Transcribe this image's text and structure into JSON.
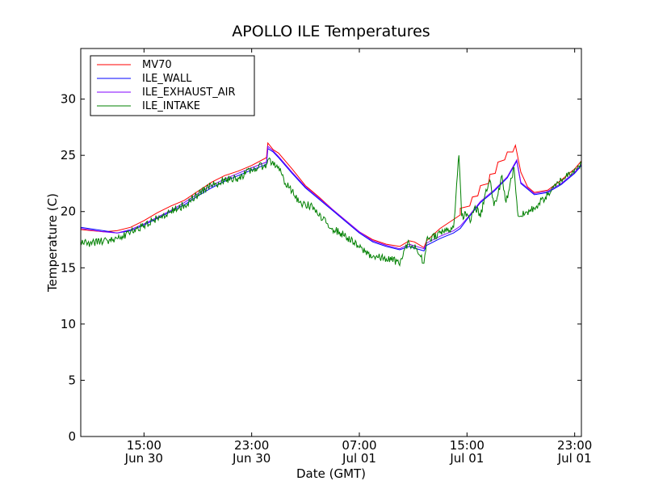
{
  "chart_data": {
    "type": "line",
    "title": "APOLLO ILE Temperatures",
    "xlabel": "Date (GMT)",
    "ylabel": "Temperature (C)",
    "x_unit": "hours since Jun 30 00:00 GMT",
    "xlim": [
      10.3,
      47.5
    ],
    "ylim": [
      0,
      34.5
    ],
    "grid": false,
    "legend_position": "top-left",
    "y_ticks": [
      0,
      5,
      10,
      15,
      20,
      25,
      30
    ],
    "x_ticks": [
      {
        "x": 15,
        "time": "15:00",
        "date": "Jun 30"
      },
      {
        "x": 23,
        "time": "23:00",
        "date": "Jun 30"
      },
      {
        "x": 31,
        "time": "07:00",
        "date": "Jul 01"
      },
      {
        "x": 39,
        "time": "15:00",
        "date": "Jul 01"
      },
      {
        "x": 47,
        "time": "23:00",
        "date": "Jul 01"
      }
    ],
    "series": [
      {
        "name": "MV70",
        "color": "#ff0000",
        "noise": 0,
        "points": [
          [
            10.3,
            18.4
          ],
          [
            12,
            18.2
          ],
          [
            13,
            18.3
          ],
          [
            14,
            18.6
          ],
          [
            15,
            19.2
          ],
          [
            16,
            19.9
          ],
          [
            17,
            20.5
          ],
          [
            18,
            21.0
          ],
          [
            19,
            21.8
          ],
          [
            20,
            22.6
          ],
          [
            21,
            23.2
          ],
          [
            22,
            23.6
          ],
          [
            23,
            24.1
          ],
          [
            24.1,
            24.8
          ],
          [
            24.2,
            26.1
          ],
          [
            24.6,
            25.5
          ],
          [
            25,
            25.2
          ],
          [
            26,
            23.8
          ],
          [
            27,
            22.3
          ],
          [
            28,
            21.3
          ],
          [
            29,
            20.2
          ],
          [
            30,
            19.2
          ],
          [
            31,
            18.2
          ],
          [
            32,
            17.5
          ],
          [
            33,
            17.1
          ],
          [
            34,
            16.9
          ],
          [
            34.7,
            17.4
          ],
          [
            35.1,
            17.3
          ],
          [
            35.8,
            16.8
          ],
          [
            36,
            17.4
          ],
          [
            37,
            18.5
          ],
          [
            38,
            19.3
          ],
          [
            38.5,
            19.7
          ],
          [
            38.5,
            20.3
          ],
          [
            39.2,
            20.5
          ],
          [
            39.4,
            21.3
          ],
          [
            39.8,
            21.4
          ],
          [
            40,
            22.3
          ],
          [
            40.6,
            22.5
          ],
          [
            40.7,
            23.3
          ],
          [
            41.1,
            23.4
          ],
          [
            41.3,
            24.4
          ],
          [
            41.8,
            24.6
          ],
          [
            42,
            25.3
          ],
          [
            42.4,
            25.3
          ],
          [
            42.6,
            25.9
          ],
          [
            43,
            23.5
          ],
          [
            43.5,
            22.2
          ],
          [
            44,
            21.7
          ],
          [
            45,
            21.9
          ],
          [
            46,
            22.8
          ],
          [
            47,
            23.8
          ],
          [
            47.5,
            24.5
          ]
        ]
      },
      {
        "name": "ILE_WALL",
        "color": "#0000ff",
        "noise": 0,
        "points": [
          [
            10.3,
            18.6
          ],
          [
            12,
            18.3
          ],
          [
            13,
            18.1
          ],
          [
            14,
            18.3
          ],
          [
            15,
            18.8
          ],
          [
            16,
            19.4
          ],
          [
            17,
            20.0
          ],
          [
            18,
            20.6
          ],
          [
            19,
            21.4
          ],
          [
            20,
            22.1
          ],
          [
            21,
            22.7
          ],
          [
            22,
            23.2
          ],
          [
            23,
            23.7
          ],
          [
            24.1,
            24.2
          ],
          [
            24.2,
            25.6
          ],
          [
            24.6,
            25.3
          ],
          [
            25,
            24.8
          ],
          [
            26,
            23.4
          ],
          [
            27,
            22.1
          ],
          [
            28,
            21.1
          ],
          [
            29,
            20.1
          ],
          [
            30,
            19.1
          ],
          [
            31,
            18.1
          ],
          [
            32,
            17.3
          ],
          [
            33,
            16.9
          ],
          [
            34,
            16.6
          ],
          [
            34.7,
            16.9
          ],
          [
            35.8,
            16.5
          ],
          [
            36,
            17.0
          ],
          [
            37,
            17.6
          ],
          [
            38,
            18.1
          ],
          [
            38.5,
            18.5
          ],
          [
            39,
            19.3
          ],
          [
            40,
            20.8
          ],
          [
            41,
            21.8
          ],
          [
            42,
            23.0
          ],
          [
            42.7,
            24.5
          ],
          [
            43,
            22.5
          ],
          [
            44,
            21.5
          ],
          [
            45,
            21.7
          ],
          [
            46,
            22.4
          ],
          [
            47,
            23.4
          ],
          [
            47.5,
            24.1
          ]
        ]
      },
      {
        "name": "ILE_EXHAUST_AIR",
        "color": "#8000ff",
        "noise": 0,
        "points": [
          [
            10.3,
            18.5
          ],
          [
            12,
            18.2
          ],
          [
            13,
            18.1
          ],
          [
            14,
            18.4
          ],
          [
            15,
            18.9
          ],
          [
            16,
            19.5
          ],
          [
            17,
            20.1
          ],
          [
            18,
            20.8
          ],
          [
            19,
            21.6
          ],
          [
            20,
            22.3
          ],
          [
            21,
            22.9
          ],
          [
            22,
            23.4
          ],
          [
            23,
            23.9
          ],
          [
            24.1,
            24.4
          ],
          [
            24.2,
            25.8
          ],
          [
            24.6,
            25.4
          ],
          [
            25,
            24.9
          ],
          [
            26,
            23.5
          ],
          [
            27,
            22.2
          ],
          [
            28,
            21.2
          ],
          [
            29,
            20.2
          ],
          [
            30,
            19.2
          ],
          [
            31,
            18.2
          ],
          [
            32,
            17.4
          ],
          [
            33,
            17.0
          ],
          [
            34,
            16.7
          ],
          [
            34.7,
            17.1
          ],
          [
            35.8,
            16.7
          ],
          [
            36,
            17.2
          ],
          [
            37,
            17.8
          ],
          [
            38,
            18.3
          ],
          [
            38.5,
            18.7
          ],
          [
            39,
            19.4
          ],
          [
            40,
            20.9
          ],
          [
            41,
            21.9
          ],
          [
            42,
            23.1
          ],
          [
            42.7,
            24.6
          ],
          [
            43,
            22.6
          ],
          [
            44,
            21.6
          ],
          [
            45,
            21.8
          ],
          [
            46,
            22.5
          ],
          [
            47,
            23.5
          ],
          [
            47.5,
            24.2
          ]
        ]
      },
      {
        "name": "ILE_INTAKE",
        "color": "#008000",
        "noise": 0.35,
        "points": [
          [
            10.3,
            17.3
          ],
          [
            11,
            17.2
          ],
          [
            12,
            17.4
          ],
          [
            13,
            17.6
          ],
          [
            14,
            18.2
          ],
          [
            15,
            18.7
          ],
          [
            16,
            19.4
          ],
          [
            17,
            20.0
          ],
          [
            18,
            20.6
          ],
          [
            19,
            21.5
          ],
          [
            20,
            22.3
          ],
          [
            21,
            22.8
          ],
          [
            22,
            23.0
          ],
          [
            23,
            23.7
          ],
          [
            24.1,
            24.2
          ],
          [
            24.2,
            24.6
          ],
          [
            25,
            24.0
          ],
          [
            25.5,
            22.5
          ],
          [
            26,
            21.8
          ],
          [
            26.5,
            20.8
          ],
          [
            27,
            20.6
          ],
          [
            27.5,
            20.5
          ],
          [
            28,
            19.6
          ],
          [
            29,
            18.5
          ],
          [
            30,
            17.8
          ],
          [
            31,
            16.8
          ],
          [
            32,
            16.0
          ],
          [
            33,
            15.8
          ],
          [
            33.8,
            15.6
          ],
          [
            34,
            15.2
          ],
          [
            34.3,
            16.5
          ],
          [
            34.7,
            17.2
          ],
          [
            35.2,
            16.7
          ],
          [
            35.5,
            16.1
          ],
          [
            35.8,
            15.4
          ],
          [
            36,
            17.5
          ],
          [
            37,
            18.1
          ],
          [
            38,
            18.6
          ],
          [
            38.4,
            25.0
          ],
          [
            38.6,
            19.6
          ],
          [
            39,
            19.8
          ],
          [
            39.3,
            19.2
          ],
          [
            39.6,
            20.5
          ],
          [
            40,
            19.5
          ],
          [
            40.3,
            21.3
          ],
          [
            40.7,
            22.8
          ],
          [
            41,
            20.5
          ],
          [
            41.3,
            21.5
          ],
          [
            41.6,
            23.2
          ],
          [
            41.9,
            20.8
          ],
          [
            42.2,
            22.5
          ],
          [
            42.5,
            23.9
          ],
          [
            42.7,
            20.9
          ],
          [
            42.8,
            19.6
          ],
          [
            43,
            19.6
          ],
          [
            44,
            20.3
          ],
          [
            45,
            21.5
          ],
          [
            46,
            22.8
          ],
          [
            47,
            23.8
          ],
          [
            47.5,
            24.3
          ]
        ]
      }
    ]
  }
}
